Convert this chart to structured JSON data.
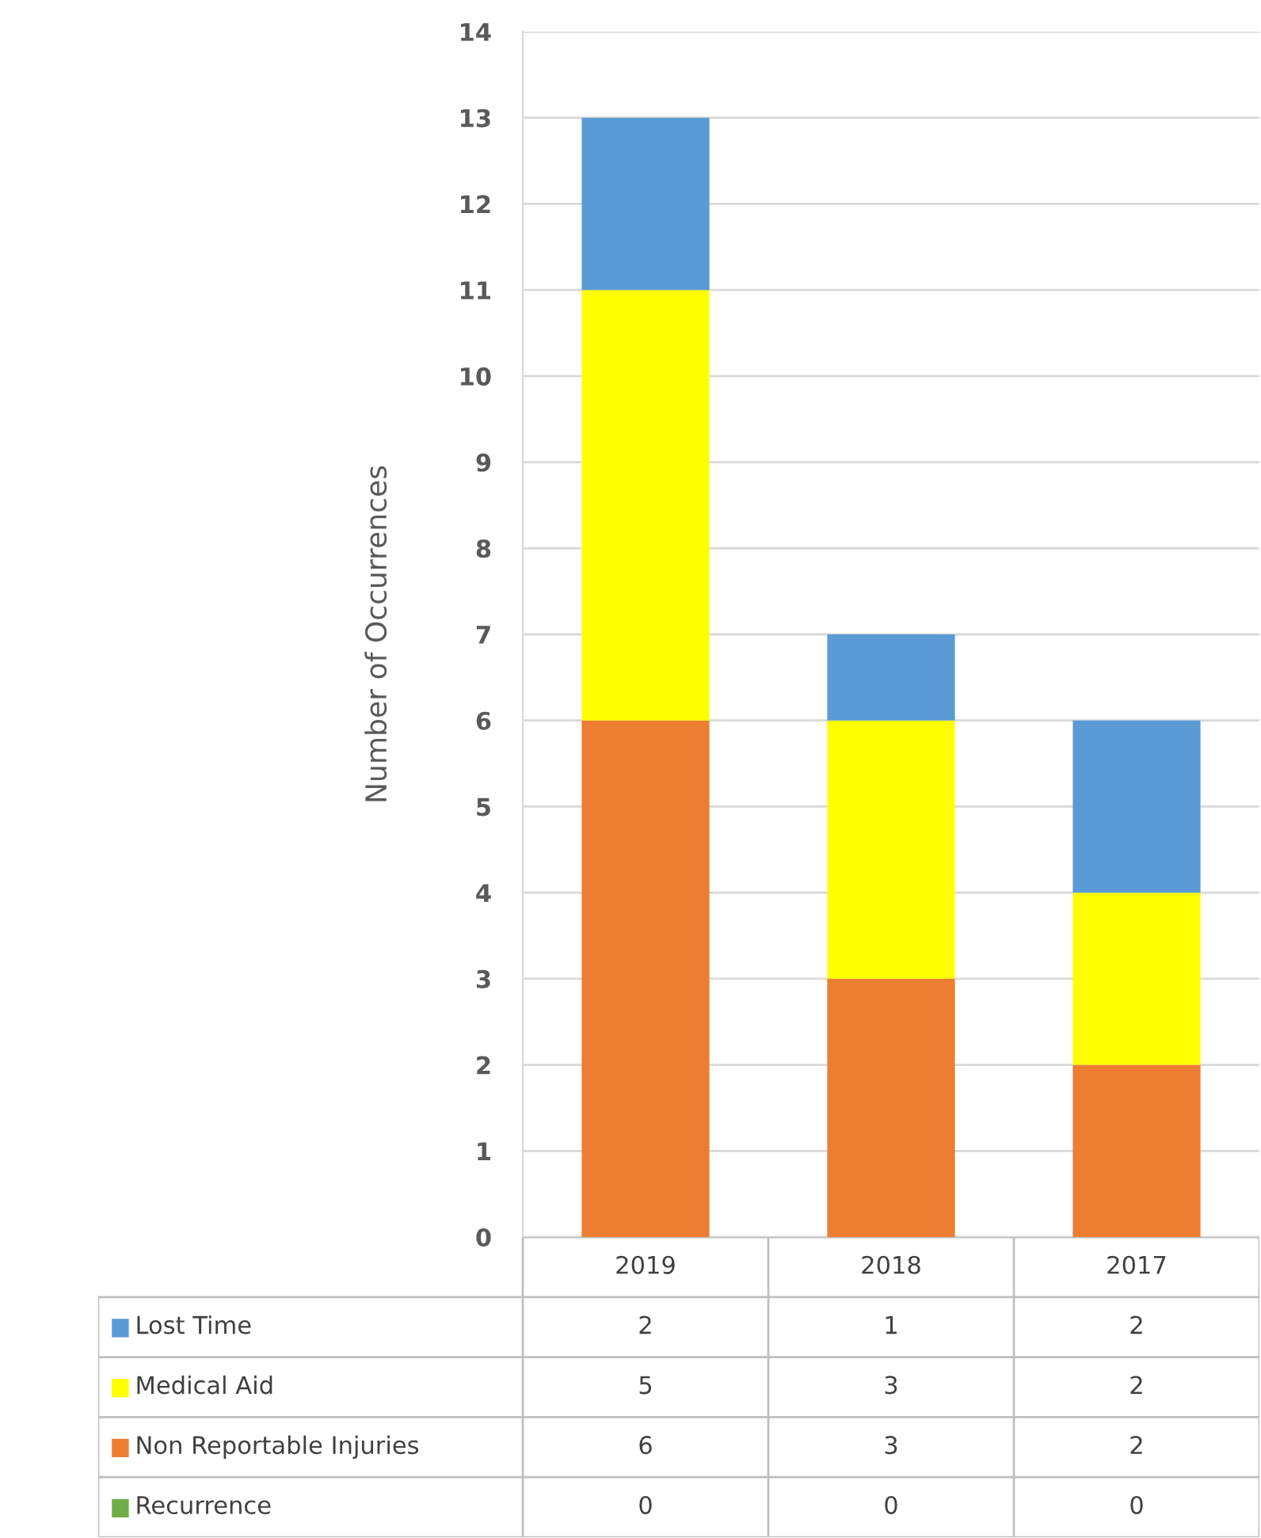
{
  "chart_data": {
    "type": "bar",
    "stacked": true,
    "ylabel": "Number of Occurrences",
    "categories": [
      "2019",
      "2018",
      "2017"
    ],
    "series": [
      {
        "name": "Recurrence",
        "color": "#70ad47",
        "values": [
          0,
          0,
          0
        ]
      },
      {
        "name": "Non Reportable Injuries",
        "color": "#ed7d31",
        "values": [
          6,
          3,
          2
        ]
      },
      {
        "name": "Medical Aid",
        "color": "#ffff00",
        "values": [
          5,
          3,
          2
        ]
      },
      {
        "name": "Lost Time",
        "color": "#5b9bd5",
        "values": [
          2,
          1,
          2
        ]
      }
    ],
    "ylim": [
      0,
      14
    ],
    "yticks": [
      0,
      1,
      2,
      3,
      4,
      5,
      6,
      7,
      8,
      9,
      10,
      11,
      12,
      13,
      14
    ],
    "grid": "y",
    "legend": "bottom",
    "data_labels": true
  }
}
